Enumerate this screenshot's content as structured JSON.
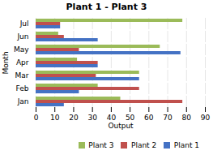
{
  "chart_data": {
    "type": "bar",
    "orientation": "horizontal",
    "title": "Plant 1 - Plant 3",
    "xlabel": "Output",
    "ylabel": "Month",
    "categories": [
      "Jan",
      "Feb",
      "Mar",
      "Apr",
      "May",
      "Jun",
      "Jul"
    ],
    "series": [
      {
        "name": "Plant 3",
        "color": "#9BBB59",
        "values": [
          45,
          33,
          55,
          22,
          66,
          12,
          78
        ]
      },
      {
        "name": "Plant 2",
        "color": "#C0504D",
        "values": [
          78,
          55,
          32,
          33,
          23,
          15,
          13
        ]
      },
      {
        "name": "Plant 1",
        "color": "#4472C4",
        "values": [
          15,
          23,
          55,
          33,
          77,
          33,
          13
        ]
      }
    ],
    "xlim": [
      0,
      90
    ],
    "xticks": [
      0,
      10,
      20,
      30,
      40,
      50,
      60,
      70,
      80,
      90
    ],
    "grid": true,
    "legend": "lower right"
  }
}
